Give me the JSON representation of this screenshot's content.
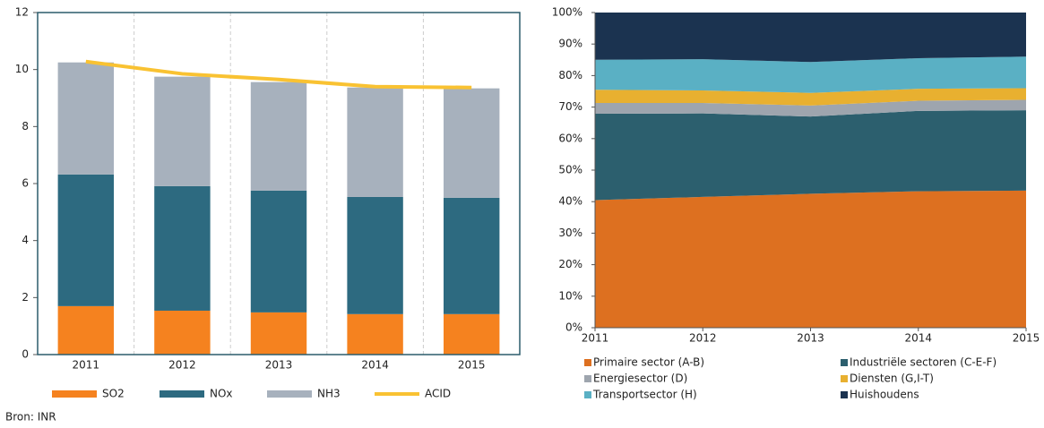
{
  "chart_data": [
    {
      "type": "bar",
      "categories": [
        "2011",
        "2012",
        "2013",
        "2014",
        "2015"
      ],
      "series": [
        {
          "name": "SO2",
          "color": "#f5821f",
          "values": [
            1.7,
            1.54,
            1.48,
            1.42,
            1.42
          ]
        },
        {
          "name": "NOx",
          "color": "#2d6a80",
          "values": [
            4.62,
            4.37,
            4.27,
            4.11,
            4.08
          ]
        },
        {
          "name": "NH3",
          "color": "#a7b1bd",
          "values": [
            3.93,
            3.84,
            3.81,
            3.84,
            3.84
          ]
        },
        {
          "name": "ACID",
          "color": "#f9c232",
          "type": "line",
          "values": [
            10.28,
            9.85,
            9.65,
            9.4,
            9.37
          ]
        }
      ],
      "ylim": [
        0,
        12
      ],
      "yticks": [
        0,
        2,
        4,
        6,
        8,
        10,
        12
      ],
      "stacked": true
    },
    {
      "type": "area",
      "x": [
        2011,
        2012,
        2013,
        2014,
        2015
      ],
      "xlim": [
        2011,
        2015
      ],
      "xticks": [
        2011,
        2012,
        2013,
        2014,
        2015
      ],
      "series": [
        {
          "name": "Primaire sector (A-B)",
          "color": "#dd7020",
          "values": [
            40.5,
            41.5,
            42.5,
            43.3,
            43.5
          ]
        },
        {
          "name": "Industriële sectoren (C-E-F)",
          "color": "#2c5f6e",
          "values": [
            27.4,
            26.5,
            24.5,
            25.5,
            25.5
          ]
        },
        {
          "name": "Energiesector (D)",
          "color": "#9ea5ae",
          "values": [
            3.4,
            3.3,
            3.5,
            3.2,
            3.3
          ]
        },
        {
          "name": "Diensten (G,I-T)",
          "color": "#e8b030",
          "values": [
            4.2,
            4.0,
            4.0,
            3.8,
            3.7
          ]
        },
        {
          "name": "Transportsector (H)",
          "color": "#5ab0c4",
          "values": [
            9.5,
            9.9,
            9.8,
            9.7,
            10.0
          ]
        },
        {
          "name": "Huishoudens",
          "color": "#1b3350",
          "values": [
            15.0,
            14.8,
            15.7,
            14.5,
            14.0
          ]
        }
      ],
      "ylim": [
        0,
        100
      ],
      "yticks": [
        {
          "value": 0,
          "label": "0%"
        },
        {
          "value": 10,
          "label": "10%"
        },
        {
          "value": 20,
          "label": "20%"
        },
        {
          "value": 30,
          "label": "30%"
        },
        {
          "value": 40,
          "label": "40%"
        },
        {
          "value": 50,
          "label": "50%"
        },
        {
          "value": 60,
          "label": "60%"
        },
        {
          "value": 70,
          "label": "70%"
        },
        {
          "value": 80,
          "label": "80%"
        },
        {
          "value": 90,
          "label": "90%"
        },
        {
          "value": 100,
          "label": "100%"
        }
      ],
      "stacked": true
    }
  ],
  "source": "Bron: INR"
}
